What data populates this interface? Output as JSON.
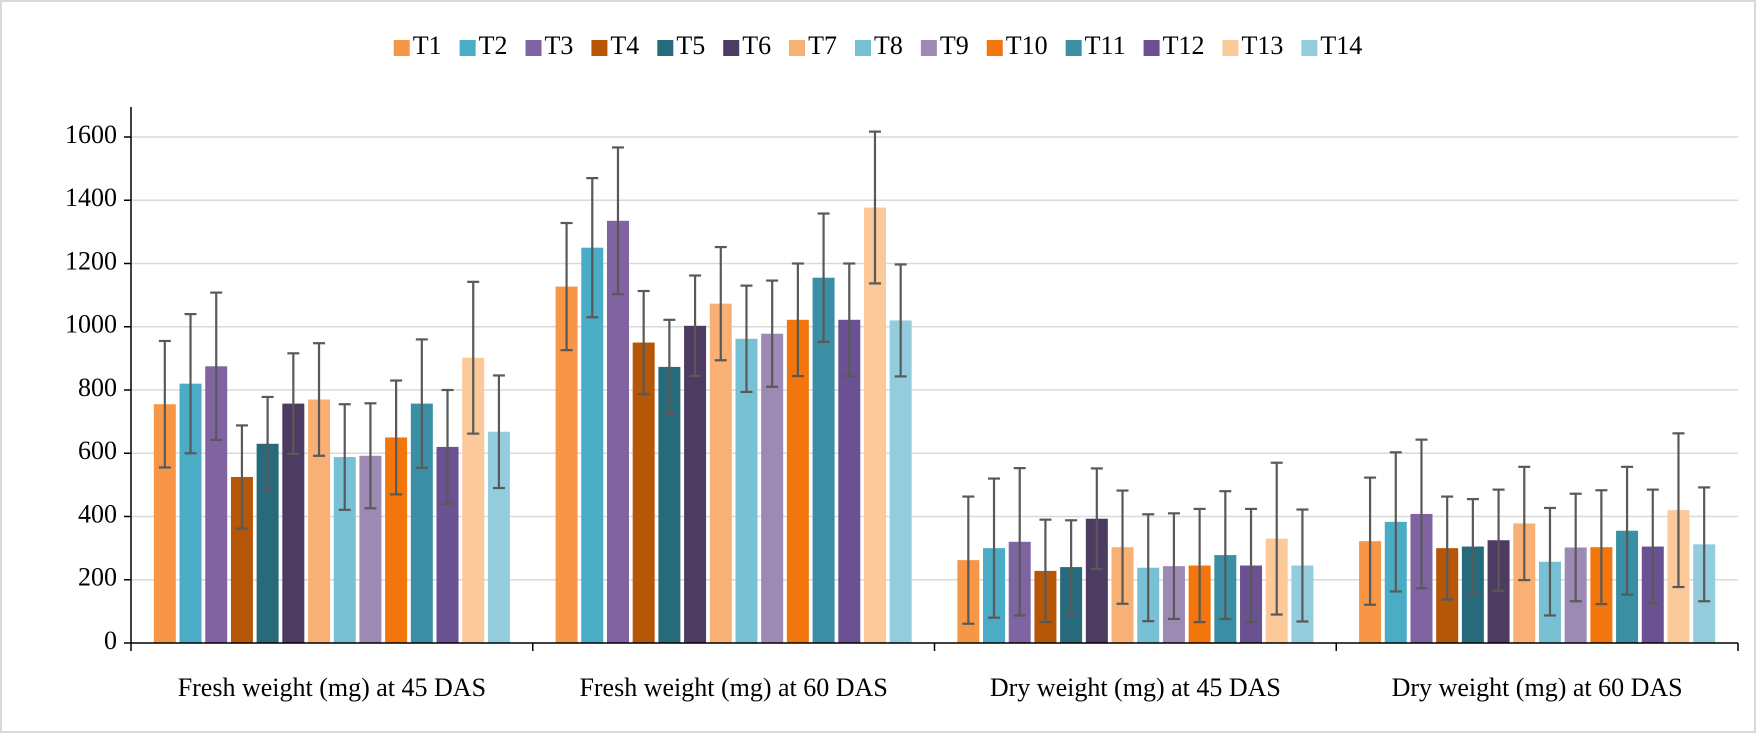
{
  "chart_data": {
    "type": "bar",
    "categories": [
      "Fresh weight (mg) at 45 DAS",
      "Fresh weight (mg) at 60 DAS",
      "Dry weight (mg) at 45 DAS",
      "Dry weight (mg) at 60 DAS"
    ],
    "ylim": [
      0,
      1600
    ],
    "yticks": [
      0,
      200,
      400,
      600,
      800,
      1000,
      1200,
      1400,
      1600
    ],
    "grid": true,
    "legend": "top",
    "series": [
      {
        "name": "T1",
        "color": "#f79646",
        "values": [
          755,
          1127,
          262,
          322
        ],
        "errors": [
          200,
          201,
          201,
          201
        ]
      },
      {
        "name": "T2",
        "color": "#4bacc6",
        "values": [
          820,
          1250,
          300,
          383
        ],
        "errors": [
          220,
          220,
          220,
          220
        ]
      },
      {
        "name": "T3",
        "color": "#8064a2",
        "values": [
          875,
          1335,
          320,
          408
        ],
        "errors": [
          233,
          232,
          233,
          235
        ]
      },
      {
        "name": "T4",
        "color": "#b65708",
        "values": [
          525,
          950,
          228,
          300
        ],
        "errors": [
          163,
          163,
          162,
          163
        ]
      },
      {
        "name": "T5",
        "color": "#276a7c",
        "values": [
          630,
          873,
          240,
          305
        ],
        "errors": [
          148,
          149,
          148,
          150
        ]
      },
      {
        "name": "T6",
        "color": "#4d3b62",
        "values": [
          757,
          1003,
          393,
          325
        ],
        "errors": [
          159,
          159,
          159,
          160
        ]
      },
      {
        "name": "T7",
        "color": "#f9b074",
        "values": [
          770,
          1073,
          303,
          378
        ],
        "errors": [
          178,
          179,
          179,
          179
        ]
      },
      {
        "name": "T8",
        "color": "#78c0d4",
        "values": [
          588,
          962,
          238,
          257
        ],
        "errors": [
          167,
          168,
          169,
          170
        ]
      },
      {
        "name": "T9",
        "color": "#9c8ab4",
        "values": [
          592,
          978,
          243,
          302
        ],
        "errors": [
          166,
          168,
          167,
          170
        ]
      },
      {
        "name": "T10",
        "color": "#f3760c",
        "values": [
          650,
          1022,
          245,
          303
        ],
        "errors": [
          180,
          178,
          179,
          180
        ]
      },
      {
        "name": "T11",
        "color": "#3a8fa5",
        "values": [
          757,
          1155,
          278,
          355
        ],
        "errors": [
          203,
          203,
          202,
          202
        ]
      },
      {
        "name": "T12",
        "color": "#6a5192",
        "values": [
          620,
          1022,
          245,
          305
        ],
        "errors": [
          180,
          178,
          179,
          180
        ]
      },
      {
        "name": "T13",
        "color": "#fbc99a",
        "values": [
          902,
          1377,
          330,
          420
        ],
        "errors": [
          240,
          240,
          240,
          243
        ]
      },
      {
        "name": "T14",
        "color": "#93cddd",
        "values": [
          668,
          1020,
          245,
          312
        ],
        "errors": [
          178,
          177,
          177,
          180
        ]
      }
    ]
  }
}
